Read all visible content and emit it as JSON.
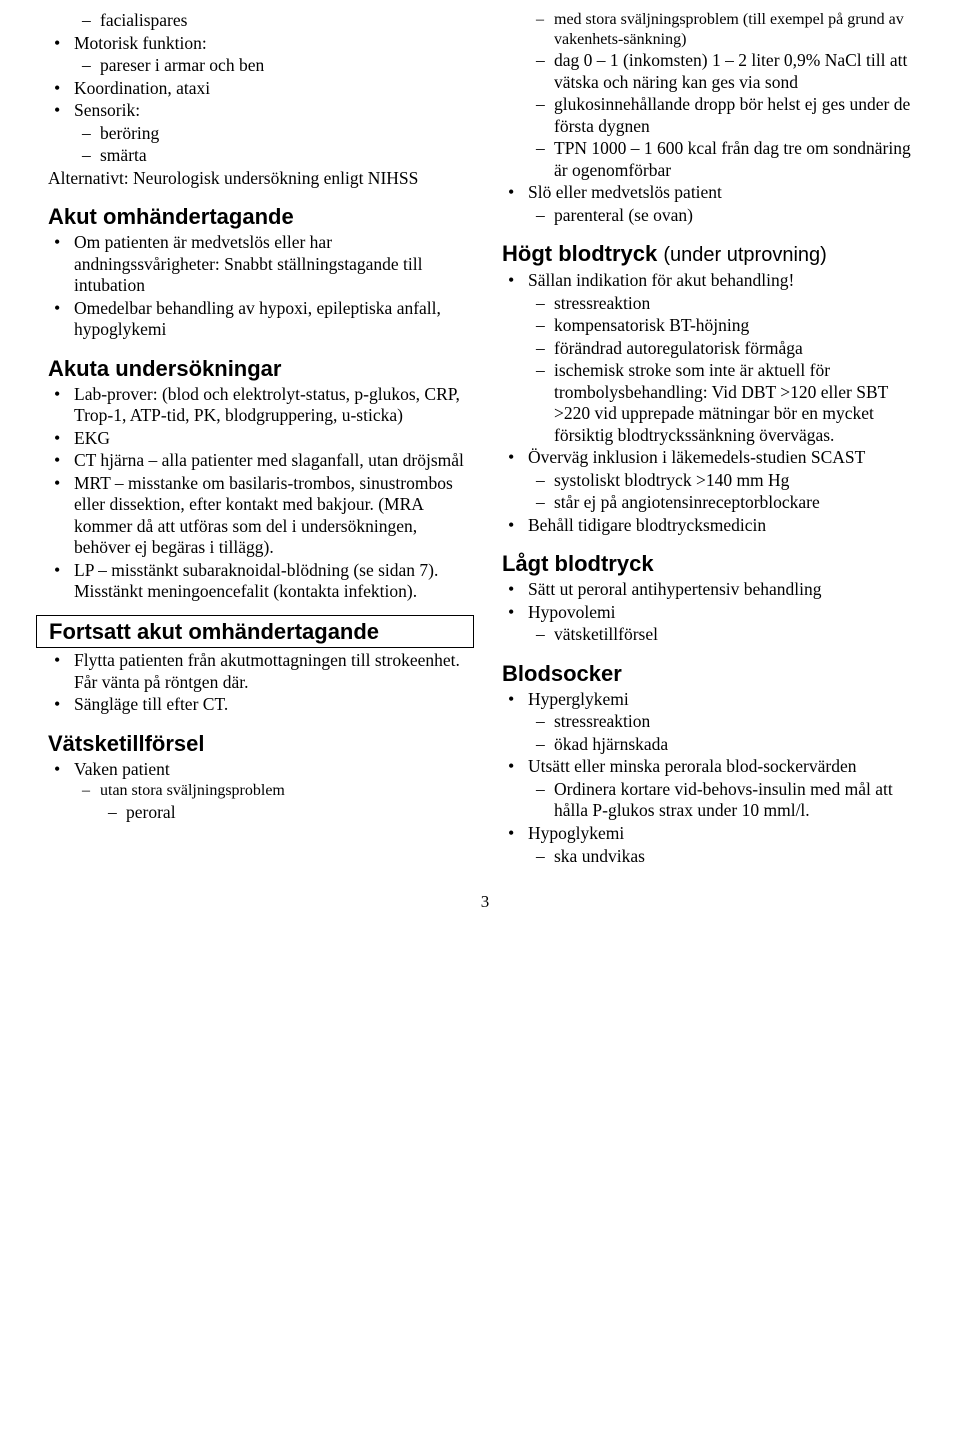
{
  "left": {
    "intro_dash_items": [
      "facialispares"
    ],
    "motorisk_funktion_label": "Motorisk funktion:",
    "motorisk_dash_items": [
      "pareser i armar och ben"
    ],
    "koordination_label": "Koordination, ataxi",
    "sensorik_label": "Sensorik:",
    "sensorik_dash_items": [
      "beröring",
      "smärta"
    ],
    "alt_line": "Alternativt: Neurologisk undersökning enligt NIHSS",
    "h_akut_om": "Akut omhändertagande",
    "akut_om_items": [
      "Om patienten är medvetslös eller har andningssvårigheter: Snabbt ställningstagande till intubation",
      "Omedelbar behandling av hypoxi, epileptiska anfall, hypoglykemi"
    ],
    "h_akuta_und": "Akuta undersökningar",
    "akuta_und_items": [
      "Lab-prover: (blod och elektrolyt-status, p-glukos, CRP, Trop-1, ATP-tid, PK, blodgruppering, u-sticka)",
      "EKG",
      "CT hjärna – alla patienter med slaganfall, utan dröjsmål",
      "MRT – misstanke om basilaris-trombos, sinustrombos eller dissektion, efter kontakt med bakjour. (MRA kommer då att utföras som del i undersökningen, behöver ej begäras i tillägg).",
      "LP – misstänkt subaraknoidal-blödning (se sidan 7). Misstänkt meningoencefalit (kontakta infektion)."
    ],
    "h_fortsatt": "Fortsatt akut omhändertagande",
    "fortsatt_items": [
      "Flytta patienten från akutmottagningen till strokeenhet. Får vänta på röntgen där.",
      "Sängläge till efter CT."
    ],
    "h_vatsketillforsel": "Vätsketillförsel",
    "vaken_label": "Vaken patient",
    "vaken_dash1": "utan stora sväljningsproblem",
    "vaken_dash2": "peroral"
  },
  "right": {
    "top_dash_items": [
      "med stora sväljningsproblem (till exempel på grund av vakenhets-sänkning)",
      "dag 0 – 1 (inkomsten) 1 – 2 liter 0,9% NaCl till att vätska och näring kan ges via sond",
      "glukosinnehållande dropp bör helst ej ges under de första dygnen",
      "TPN 1000 – 1 600 kcal från dag tre om sondnäring är ogenomförbar"
    ],
    "slo_label": "Slö eller medvetslös patient",
    "slo_dash_items": [
      "parenteral (se ovan)"
    ],
    "h_hogt_bt": "Högt blodtryck",
    "h_hogt_bt_paren": "(under utprovning)",
    "hogt_bt_item1": "Sällan indikation för akut behandling!",
    "hogt_bt_dash_items": [
      "stressreaktion",
      "kompensatorisk BT-höjning",
      "förändrad autoregulatorisk förmåga",
      "ischemisk stroke som inte är aktuell för trombolysbehandling: Vid DBT >120 eller SBT >220 vid upprepade mätningar bör en mycket försiktig blodtryckssänkning övervägas."
    ],
    "hogt_bt_item2": "Överväg inklusion i läkemedels-studien SCAST",
    "hogt_bt_item2_dash": [
      "systoliskt blodtryck >140 mm Hg",
      "står ej på angiotensinreceptorblockare"
    ],
    "hogt_bt_item3": "Behåll tidigare blodtrycksmedicin",
    "h_lagt_bt": "Lågt blodtryck",
    "lagt_item1": "Sätt ut peroral antihypertensiv behandling",
    "lagt_item2": "Hypovolemi",
    "lagt_item2_dash": [
      "vätsketillförsel"
    ],
    "h_blodsocker": "Blodsocker",
    "bs_item1": "Hyperglykemi",
    "bs_item1_dash": [
      "stressreaktion",
      "ökad hjärnskada"
    ],
    "bs_item2": "Utsätt eller minska perorala blod-sockervärden",
    "bs_item2_dash": [
      "Ordinera kortare vid-behovs-insulin med mål att hålla P-glukos strax under 10 mml/l."
    ],
    "bs_item3": "Hypoglykemi",
    "bs_item3_dash": [
      "ska undvikas"
    ]
  },
  "page_number": "3"
}
